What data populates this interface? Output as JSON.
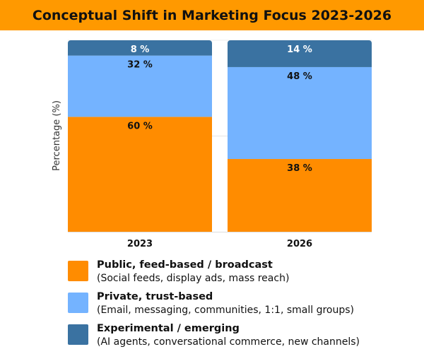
{
  "chart_data": {
    "type": "bar",
    "stacked": true,
    "title": "Conceptual Shift in Marketing Focus 2023-2026",
    "xlabel": "",
    "ylabel": "Percentage (%)",
    "ylim": [
      0,
      100
    ],
    "grid": true,
    "legend_position": "bottom",
    "categories": [
      "2023",
      "2026"
    ],
    "series": [
      {
        "name": "Public, feed-based / broadcast",
        "description": "(Social feeds, display ads, mass reach)",
        "values": [
          60,
          38
        ],
        "labels": [
          "60 %",
          "38 %"
        ],
        "color": "#FF8C00",
        "label_color": "#111111"
      },
      {
        "name": "Private, trust-based",
        "description": "(Email, messaging, communities, 1:1, small groups)",
        "values": [
          32,
          48
        ],
        "labels": [
          "32 %",
          "48 %"
        ],
        "color": "#74B3FF",
        "label_color": "#111111"
      },
      {
        "name": "Experimental / emerging",
        "description": "(AI agents, conversational commerce, new channels)",
        "values": [
          8,
          14
        ],
        "labels": [
          "8 %",
          "14 %"
        ],
        "color": "#3A72A1",
        "label_color": "#FFFFFF"
      }
    ]
  }
}
